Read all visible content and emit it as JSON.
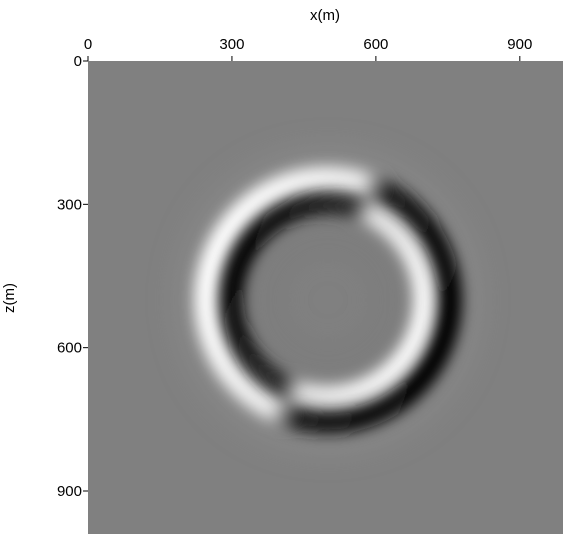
{
  "chart_data": {
    "type": "image",
    "xlabel": "x(m)",
    "ylabel": "z(m)",
    "xlim": [
      0,
      990
    ],
    "ylim": [
      0,
      990
    ],
    "xticks": [
      0,
      300,
      600,
      900
    ],
    "yticks": [
      0,
      300,
      600,
      900
    ],
    "y_inverted": true,
    "x_axis_position": "top"
  }
}
